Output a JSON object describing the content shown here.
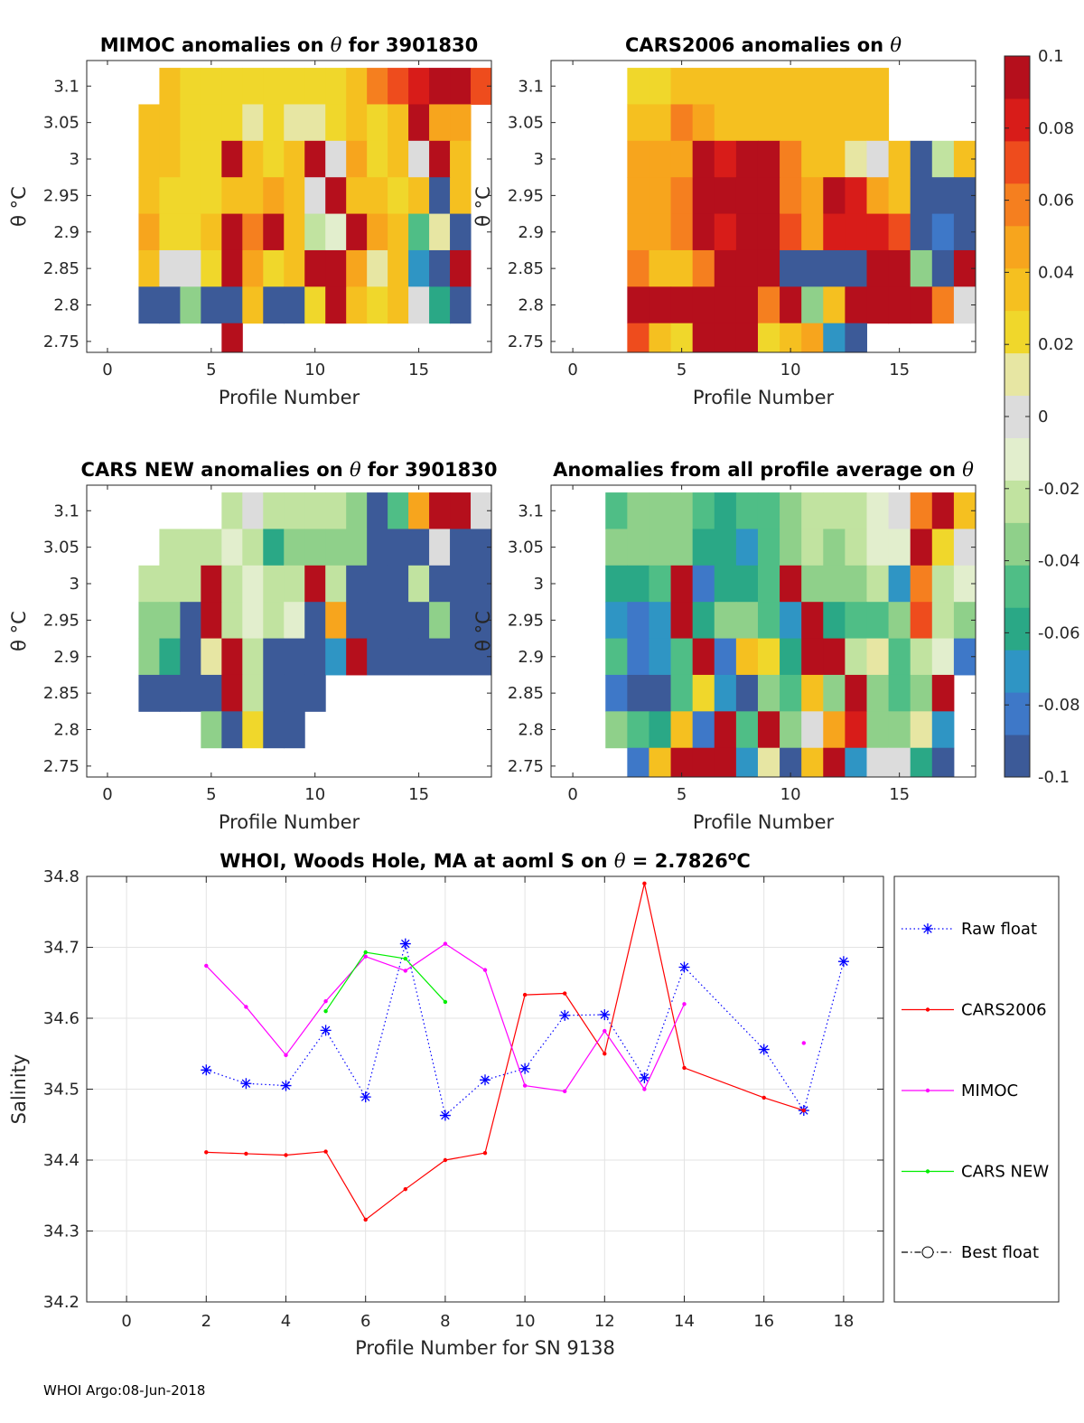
{
  "footer": "WHOI Argo:08-Jun-2018",
  "colorbar": {
    "min": -0.1,
    "max": 0.1,
    "tick_values": [
      0.1,
      0.08,
      0.06,
      0.04,
      0.02,
      0,
      -0.02,
      -0.04,
      -0.06,
      -0.08,
      -0.1
    ],
    "tick_labels": [
      "0.1",
      "0.08",
      "0.06",
      "0.04",
      "0.02",
      "0",
      "-0.02",
      "-0.04",
      "-0.06",
      "-0.08",
      "-0.1"
    ],
    "colors": [
      "#3c5a98",
      "#3e78c8",
      "#2f95c4",
      "#2aa886",
      "#4fbe86",
      "#8fd08a",
      "#c1e3a0",
      "#e2eecd",
      "#dcdcdc",
      "#e7e6a3",
      "#f0d72b",
      "#f5c020",
      "#f7a51d",
      "#f57f1f",
      "#ee4c1d",
      "#d81c19",
      "#b50f1c"
    ]
  },
  "chart_data": [
    {
      "type": "heatmap",
      "title_parts": [
        "MIMOC anomalies on ",
        "θ",
        "  for 3901830"
      ],
      "xlabel": "Profile Number",
      "ylabel": "θ °C",
      "xlim": [
        -1,
        18.5
      ],
      "ylim": [
        2.735,
        3.135
      ],
      "xticks": [
        0,
        5,
        10,
        15
      ],
      "yticks": [
        2.75,
        2.8,
        2.85,
        2.9,
        2.95,
        3,
        3.05,
        3.1
      ],
      "ytick_labels": [
        "2.75",
        "2.8",
        "2.85",
        "2.9",
        "2.95",
        "3",
        "3.05",
        "3.1"
      ],
      "x_start": 2,
      "y_levels": [
        3.1,
        3.05,
        3.0,
        2.95,
        2.9,
        2.85,
        2.8,
        2.75
      ],
      "grid": [
        [
          null,
          0.03,
          0.022,
          0.022,
          0.022,
          0.022,
          0.022,
          0.02,
          0.02,
          0.025,
          0.03,
          0.055,
          0.07,
          0.085,
          0.095,
          0.09,
          0.07
        ],
        [
          0.04,
          0.03,
          0.025,
          0.025,
          0.022,
          0.01,
          0.02,
          0.015,
          0.01,
          0.02,
          0.035,
          0.02,
          0.03,
          0.1,
          0.05,
          0.045
        ],
        [
          0.035,
          0.03,
          0.025,
          0.022,
          0.1,
          0.03,
          0.025,
          0.035,
          0.1,
          0.005,
          0.045,
          0.025,
          0.035,
          0.005,
          0.1,
          0.03
        ],
        [
          0.03,
          0.02,
          0.025,
          0.02,
          0.035,
          0.03,
          0.05,
          0.03,
          0.005,
          0.1,
          0.03,
          0.035,
          0.025,
          0.03,
          -0.09,
          0.04
        ],
        [
          0.05,
          0.025,
          0.025,
          0.03,
          0.1,
          0.06,
          0.1,
          0.03,
          -0.02,
          -0.01,
          0.1,
          0.045,
          0.03,
          -0.05,
          0.01,
          -0.09
        ],
        [
          0.03,
          0.005,
          0.005,
          0.025,
          0.1,
          0.05,
          0.02,
          0.04,
          0.1,
          0.1,
          0.05,
          0.01,
          0.03,
          -0.07,
          -0.09,
          0.1
        ],
        [
          -0.09,
          -0.09,
          -0.04,
          -0.09,
          -0.09,
          0.035,
          -0.09,
          -0.09,
          0.02,
          0.1,
          0.03,
          0.02,
          0.04,
          0.005,
          -0.06,
          -0.09
        ],
        [
          null,
          null,
          null,
          null,
          0.1
        ]
      ]
    },
    {
      "type": "heatmap",
      "title_parts": [
        "CARS2006 anomalies on ",
        "θ",
        ""
      ],
      "xlabel": "Profile Number",
      "ylabel": "θ °C",
      "xlim": [
        -1,
        18.5
      ],
      "ylim": [
        2.735,
        3.135
      ],
      "xticks": [
        0,
        5,
        10,
        15
      ],
      "yticks": [
        2.75,
        2.8,
        2.85,
        2.9,
        2.95,
        3,
        3.05,
        3.1
      ],
      "ytick_labels": [
        "2.75",
        "2.8",
        "2.85",
        "2.9",
        "2.95",
        "3",
        "3.05",
        "3.1"
      ],
      "x_start": 3,
      "y_levels": [
        3.1,
        3.05,
        3.0,
        2.95,
        2.9,
        2.85,
        2.8,
        2.75
      ],
      "grid": [
        [
          0.025,
          0.02,
          0.035,
          0.035,
          0.03,
          0.03,
          0.03,
          0.03,
          0.035,
          0.03,
          0.035,
          0.03
        ],
        [
          0.03,
          0.03,
          0.055,
          0.05,
          0.03,
          0.035,
          0.035,
          0.04,
          0.04,
          0.04,
          0.035,
          0.03
        ],
        [
          0.05,
          0.05,
          0.05,
          0.1,
          0.08,
          0.1,
          0.1,
          0.06,
          0.04,
          0.03,
          0.01,
          0.005,
          0.04,
          -0.09,
          -0.02,
          0.03
        ],
        [
          0.05,
          0.05,
          0.06,
          0.1,
          0.1,
          0.1,
          0.1,
          0.06,
          0.05,
          0.1,
          0.08,
          0.05,
          0.04,
          -0.09,
          -0.09,
          -0.09
        ],
        [
          0.05,
          0.05,
          0.06,
          0.1,
          0.08,
          0.1,
          0.1,
          0.07,
          0.05,
          0.08,
          0.08,
          0.08,
          0.07,
          -0.09,
          -0.08,
          -0.09
        ],
        [
          0.06,
          0.04,
          0.04,
          0.06,
          0.1,
          0.1,
          0.09,
          -0.09,
          -0.09,
          -0.09,
          -0.09,
          0.1,
          0.1,
          -0.04,
          -0.09,
          0.1
        ],
        [
          0.1,
          0.1,
          0.1,
          0.1,
          0.1,
          0.1,
          0.06,
          0.1,
          -0.03,
          0.03,
          0.1,
          0.1,
          0.1,
          0.1,
          0.06,
          0.005
        ],
        [
          0.07,
          0.03,
          0.02,
          0.1,
          0.1,
          0.1,
          0.025,
          0.03,
          0.05,
          -0.07,
          -0.09
        ]
      ]
    },
    {
      "type": "heatmap",
      "title_parts": [
        "CARS NEW anomalies on ",
        "θ",
        " for 3901830"
      ],
      "xlabel": "Profile Number",
      "ylabel": "θ °C",
      "xlim": [
        -1,
        18.5
      ],
      "ylim": [
        2.735,
        3.135
      ],
      "xticks": [
        0,
        5,
        10,
        15
      ],
      "yticks": [
        2.75,
        2.8,
        2.85,
        2.9,
        2.95,
        3,
        3.05,
        3.1
      ],
      "ytick_labels": [
        "2.75",
        "2.8",
        "2.85",
        "2.9",
        "2.95",
        "3",
        "3.05",
        "3.1"
      ],
      "x_start": 2,
      "y_levels": [
        3.1,
        3.05,
        3.0,
        2.95,
        2.9,
        2.85,
        2.8,
        2.75
      ],
      "grid": [
        [
          null,
          null,
          null,
          null,
          -0.025,
          -0.005,
          -0.02,
          -0.02,
          -0.025,
          -0.025,
          -0.03,
          -0.09,
          -0.05,
          0.045,
          0.1,
          0.1,
          0.005
        ],
        [
          null,
          -0.02,
          -0.02,
          -0.025,
          -0.01,
          -0.02,
          -0.055,
          -0.035,
          -0.03,
          -0.03,
          -0.03,
          -0.09,
          -0.09,
          -0.09,
          0.005,
          -0.09,
          -0.09
        ],
        [
          -0.025,
          -0.025,
          -0.02,
          0.1,
          -0.025,
          -0.015,
          -0.025,
          -0.02,
          0.1,
          -0.025,
          -0.09,
          -0.09,
          -0.09,
          -0.025,
          -0.09,
          -0.09,
          -0.09
        ],
        [
          -0.035,
          -0.04,
          -0.09,
          0.1,
          -0.025,
          -0.01,
          -0.02,
          -0.015,
          -0.09,
          0.05,
          -0.09,
          -0.09,
          -0.09,
          -0.09,
          -0.04,
          -0.09,
          -0.09
        ],
        [
          -0.035,
          -0.055,
          -0.09,
          0.01,
          0.1,
          -0.02,
          -0.09,
          -0.09,
          -0.09,
          -0.07,
          0.1,
          -0.09,
          -0.09,
          -0.09,
          -0.09,
          -0.09,
          -0.09
        ],
        [
          -0.09,
          -0.09,
          -0.09,
          -0.09,
          0.1,
          -0.02,
          -0.09,
          -0.09,
          -0.09
        ],
        [
          null,
          null,
          null,
          -0.03,
          -0.09,
          0.02,
          -0.09,
          -0.09
        ]
      ]
    },
    {
      "type": "heatmap",
      "title_parts": [
        "Anomalies from all profile average on ",
        "θ",
        ""
      ],
      "xlabel": "Profile Number",
      "ylabel": "θ °C",
      "xlim": [
        -1,
        18.5
      ],
      "ylim": [
        2.735,
        3.135
      ],
      "xticks": [
        0,
        5,
        10,
        15
      ],
      "yticks": [
        2.75,
        2.8,
        2.85,
        2.9,
        2.95,
        3,
        3.05,
        3.1
      ],
      "ytick_labels": [
        "2.75",
        "2.8",
        "2.85",
        "2.9",
        "2.95",
        "3",
        "3.05",
        "3.1"
      ],
      "x_start": 2,
      "y_levels": [
        3.1,
        3.05,
        3.0,
        2.95,
        2.9,
        2.85,
        2.8,
        2.75
      ],
      "grid": [
        [
          -0.045,
          -0.04,
          -0.035,
          -0.035,
          -0.05,
          -0.055,
          -0.05,
          -0.045,
          -0.03,
          -0.025,
          -0.025,
          -0.02,
          -0.01,
          0.005,
          0.06,
          0.1,
          0.03
        ],
        [
          -0.035,
          -0.03,
          -0.035,
          -0.03,
          -0.06,
          -0.06,
          -0.07,
          -0.045,
          -0.03,
          -0.025,
          -0.03,
          -0.02,
          -0.015,
          -0.01,
          0.1,
          0.02,
          0.005
        ],
        [
          -0.06,
          -0.06,
          -0.05,
          0.1,
          -0.08,
          -0.06,
          -0.06,
          -0.05,
          0.1,
          -0.04,
          -0.04,
          -0.03,
          -0.025,
          -0.07,
          0.06,
          -0.02,
          -0.01
        ],
        [
          -0.07,
          -0.08,
          -0.07,
          0.1,
          -0.06,
          -0.04,
          -0.035,
          -0.05,
          -0.07,
          0.1,
          -0.055,
          -0.05,
          -0.045,
          -0.03,
          0.07,
          -0.02,
          -0.03
        ],
        [
          -0.05,
          -0.08,
          -0.07,
          -0.05,
          0.1,
          -0.08,
          0.035,
          0.025,
          -0.06,
          0.1,
          0.1,
          -0.02,
          0.015,
          -0.045,
          -0.02,
          -0.01,
          -0.08
        ],
        [
          -0.08,
          -0.09,
          -0.09,
          -0.05,
          0.02,
          -0.075,
          -0.09,
          -0.04,
          -0.05,
          0.03,
          -0.03,
          0.1,
          -0.03,
          -0.05,
          -0.03,
          0.1
        ],
        [
          -0.035,
          -0.05,
          -0.06,
          0.03,
          -0.08,
          0.1,
          -0.05,
          0.1,
          -0.035,
          0.005,
          0.045,
          0.08,
          -0.03,
          -0.035,
          0.01,
          -0.07
        ],
        [
          null,
          -0.08,
          0.03,
          0.1,
          0.1,
          0.1,
          -0.07,
          0.01,
          -0.09,
          0.035,
          0.1,
          -0.07,
          0.005,
          0.005,
          -0.06,
          -0.09
        ]
      ]
    },
    {
      "type": "line",
      "title_parts": [
        "WHOI, Woods Hole, MA at aoml S on ",
        "θ",
        " = 2.7826",
        "o",
        "C"
      ],
      "xlabel": "Profile Number for SN 9138",
      "ylabel": "Salinity",
      "xlim": [
        -1,
        19
      ],
      "ylim": [
        34.2,
        34.8
      ],
      "xticks": [
        0,
        2,
        4,
        6,
        8,
        10,
        12,
        14,
        16,
        18
      ],
      "yticks": [
        34.2,
        34.3,
        34.4,
        34.5,
        34.6,
        34.7,
        34.8
      ],
      "ytick_labels": [
        "34.2",
        "34.3",
        "34.4",
        "34.5",
        "34.6",
        "34.7",
        "34.8"
      ],
      "grid": true,
      "series": [
        {
          "name": "Raw float",
          "color": "#0000ff",
          "style": "dotted",
          "marker": "asterisk",
          "x": [
            2,
            3,
            4,
            5,
            6,
            7,
            8,
            9,
            10,
            11,
            12,
            13,
            14,
            16,
            17,
            18
          ],
          "y": [
            34.527,
            34.508,
            34.505,
            34.583,
            34.489,
            34.705,
            34.463,
            34.513,
            34.529,
            34.604,
            34.605,
            34.516,
            34.672,
            34.556,
            34.47,
            34.68
          ]
        },
        {
          "name": "CARS2006",
          "color": "#ff0000",
          "style": "solid",
          "marker": "dot",
          "x": [
            2,
            3,
            4,
            5,
            6,
            7,
            8,
            9,
            10,
            11,
            12,
            13,
            14,
            16,
            17
          ],
          "y": [
            34.411,
            34.409,
            34.407,
            34.412,
            34.316,
            34.359,
            34.4,
            34.41,
            34.633,
            34.635,
            34.55,
            34.79,
            34.53,
            34.488,
            34.47
          ]
        },
        {
          "name": "MIMOC",
          "color": "#ff00ff",
          "style": "solid",
          "marker": "dot",
          "x": [
            2,
            3,
            4,
            5,
            6,
            7,
            8,
            9,
            10,
            11,
            12,
            13,
            14
          ],
          "y": [
            34.674,
            34.616,
            34.548,
            34.624,
            34.687,
            34.667,
            34.705,
            34.668,
            34.505,
            34.497,
            34.582,
            34.5,
            34.62
          ],
          "extra_points": [
            {
              "x": 17,
              "y": 34.565
            }
          ]
        },
        {
          "name": "CARS NEW",
          "color": "#00ee00",
          "style": "solid",
          "marker": "dot",
          "x": [
            5,
            6,
            7,
            8
          ],
          "y": [
            34.61,
            34.693,
            34.684,
            34.623
          ]
        },
        {
          "name": "Best float",
          "color": "#000000",
          "style": "dashdot",
          "marker": "circle",
          "x": [],
          "y": []
        }
      ]
    }
  ]
}
